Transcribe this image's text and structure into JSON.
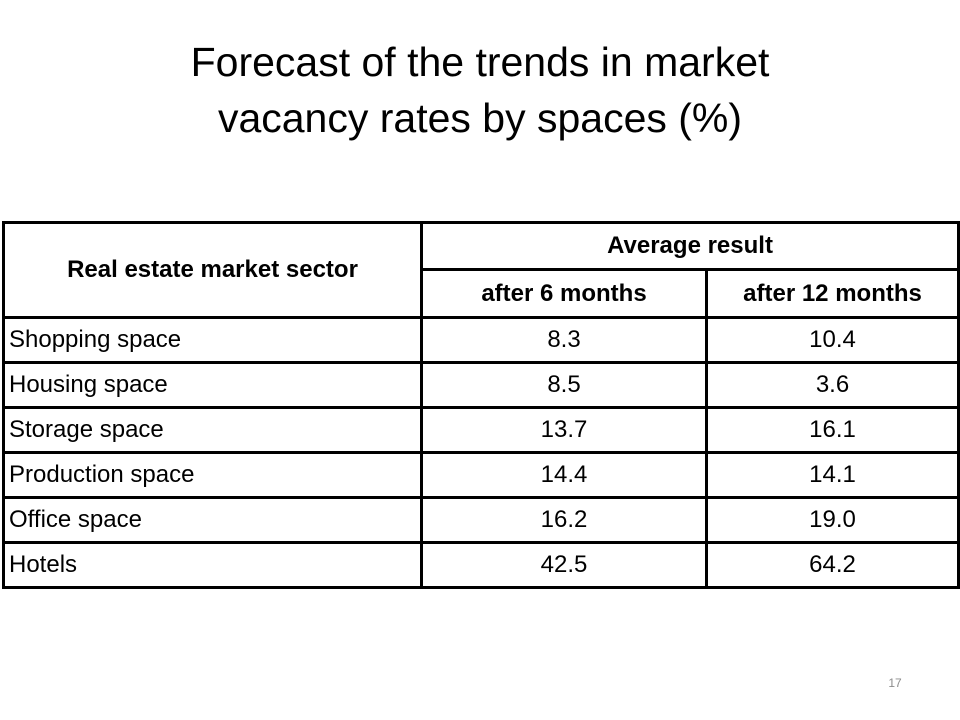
{
  "title": {
    "line1": "Forecast of the trends in market",
    "line2": "vacancy rates by spaces (%)"
  },
  "table": {
    "sector_header": "Real estate market sector",
    "group_header": "Average result",
    "col_6": "after 6 months",
    "col_12": "after 12 months",
    "rows": [
      {
        "sector": "Shopping space",
        "m6": "8.3",
        "m12": "10.4"
      },
      {
        "sector": "Housing space",
        "m6": "8.5",
        "m12": "3.6"
      },
      {
        "sector": "Storage space",
        "m6": "13.7",
        "m12": "16.1"
      },
      {
        "sector": "Production space",
        "m6": "14.4",
        "m12": "14.1"
      },
      {
        "sector": "Office space",
        "m6": "16.2",
        "m12": "19.0"
      },
      {
        "sector": "Hotels",
        "m6": "42.5",
        "m12": "64.2"
      }
    ]
  },
  "page_number": "17"
}
